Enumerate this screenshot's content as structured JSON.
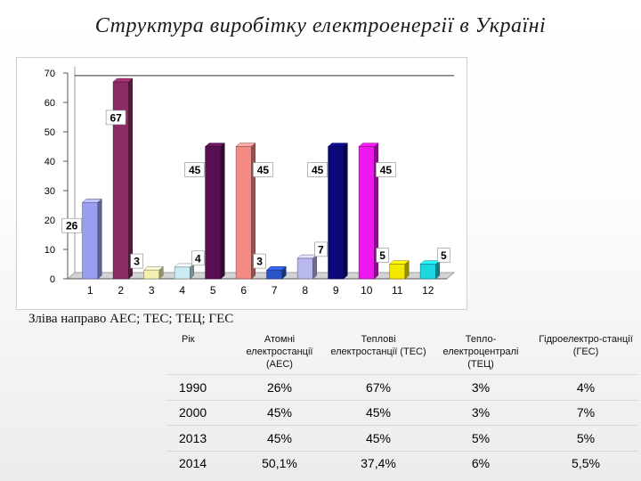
{
  "title": "Структура виробітку електроенергії  в Україні",
  "caption": "Зліва направо АЕС; ТЕС; ТЕЦ; ГЕС",
  "chart_data": {
    "type": "bar",
    "categories": [
      "1",
      "2",
      "3",
      "4",
      "5",
      "6",
      "7",
      "8",
      "9",
      "10",
      "11",
      "12"
    ],
    "values": [
      26,
      67,
      3,
      4,
      45,
      45,
      3,
      7,
      45,
      45,
      5,
      5
    ],
    "data_labels": [
      "26",
      "67",
      "3",
      "4",
      "45",
      "45",
      "3",
      "7",
      "45",
      "45",
      "5",
      "5"
    ],
    "bar_colors": [
      "#9a9ef0",
      "#8b2b63",
      "#f3f0b0",
      "#c9ecf3",
      "#5a0f52",
      "#f48a84",
      "#2b54c9",
      "#b8b8ef",
      "#0a0a7a",
      "#ef17ef",
      "#f4e800",
      "#1cd6e0"
    ],
    "ylim": [
      0,
      70
    ],
    "yticks": [
      0,
      10,
      20,
      30,
      40,
      50,
      60,
      70
    ],
    "grid": false
  },
  "table": {
    "headers": [
      "Рік",
      "Атомні електростанції (АЕС)",
      "Теплові електростанції (ТЕС)",
      "Тепло-електроцентралі (ТЕЦ)",
      "Гідроелектро-станції (ГЕС)"
    ],
    "rows": [
      [
        "1990",
        "26%",
        "67%",
        "3%",
        "4%"
      ],
      [
        "2000",
        "45%",
        "45%",
        "3%",
        "7%"
      ],
      [
        "2013",
        "45%",
        "45%",
        "5%",
        "5%"
      ],
      [
        "2014",
        "50,1%",
        "37,4%",
        "6%",
        "5,5%"
      ]
    ]
  }
}
